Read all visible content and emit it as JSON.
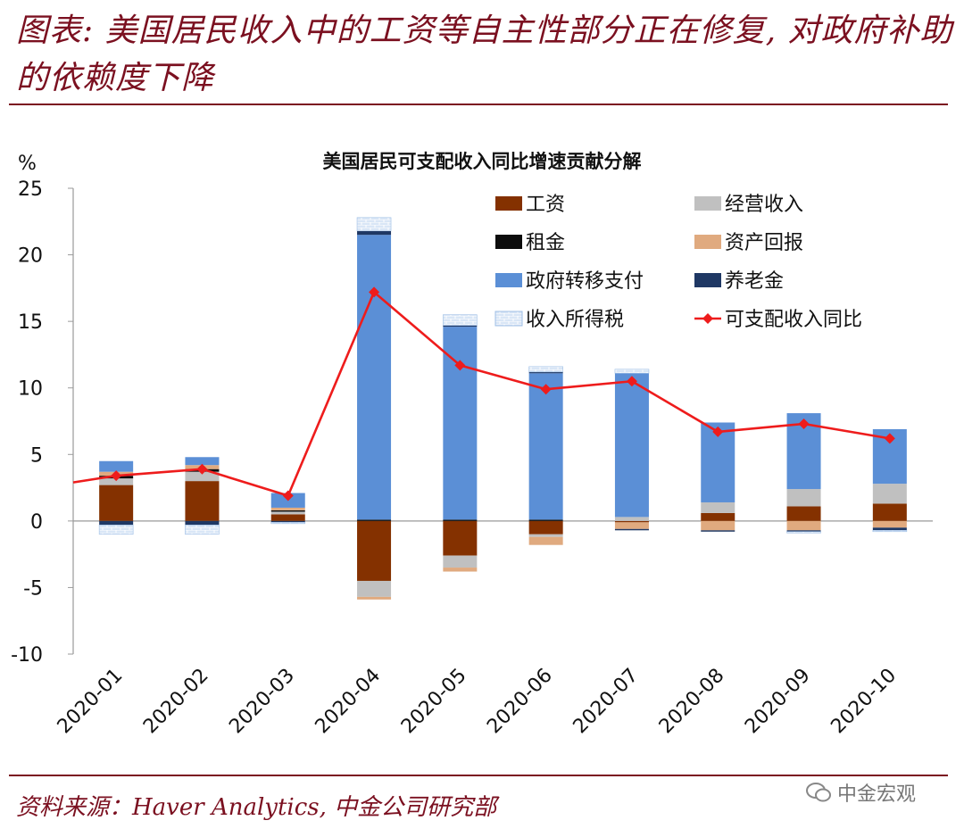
{
  "header": {
    "title": "图表: 美国居民收入中的工资等自主性部分正在修复, 对政府补助的依赖度下降"
  },
  "footer": {
    "source": "资料来源：Haver Analytics, 中金公司研究部",
    "watermark": "中金宏观"
  },
  "colors": {
    "title": "#7b1020",
    "wage": "#843100",
    "business": "#c0c0c0",
    "rent": "#0d0d0d",
    "asset": "#e0aa7f",
    "gov": "#5b8fd6",
    "pension": "#1f3864",
    "tax": "#d9e6f6",
    "line": "#ee1c1c"
  },
  "chart_data": {
    "type": "bar",
    "stacked": true,
    "title": "美国居民可支配收入同比增速贡献分解",
    "ylabel": "%",
    "ylim": [
      -10,
      25
    ],
    "yticks": [
      "25",
      "20",
      "15",
      "10",
      "5",
      "0",
      "-5",
      "-10"
    ],
    "categories": [
      "2020-01",
      "2020-02",
      "2020-03",
      "2020-04",
      "2020-05",
      "2020-06",
      "2020-07",
      "2020-08",
      "2020-09",
      "2020-10"
    ],
    "series": [
      {
        "name": "工资",
        "key": "wage",
        "values": [
          2.7,
          3.0,
          0.5,
          -4.5,
          -2.6,
          -1.0,
          -0.1,
          0.6,
          1.1,
          1.3
        ]
      },
      {
        "name": "经营收入",
        "key": "business",
        "values": [
          0.5,
          0.7,
          0.2,
          -1.2,
          -0.9,
          -0.2,
          0.3,
          0.8,
          1.3,
          1.5
        ]
      },
      {
        "name": "租金",
        "key": "rent",
        "values": [
          0.2,
          0.2,
          0.1,
          0.1,
          0.1,
          0.1,
          0.0,
          0.0,
          0.0,
          0.0
        ]
      },
      {
        "name": "资产回报",
        "key": "asset",
        "values": [
          0.3,
          0.3,
          0.2,
          -0.2,
          -0.3,
          -0.6,
          -0.5,
          -0.7,
          -0.7,
          -0.5
        ]
      },
      {
        "name": "政府转移支付",
        "key": "gov",
        "values": [
          0.8,
          0.6,
          1.1,
          21.4,
          14.5,
          11.0,
          10.8,
          6.0,
          5.7,
          4.1
        ]
      },
      {
        "name": "养老金",
        "key": "pension",
        "values": [
          -0.3,
          -0.3,
          -0.1,
          0.3,
          0.1,
          0.1,
          -0.1,
          -0.1,
          -0.1,
          -0.2
        ]
      },
      {
        "name": "收入所得税",
        "key": "tax",
        "values": [
          -0.7,
          -0.7,
          -0.1,
          1.0,
          0.8,
          0.4,
          0.3,
          0.0,
          -0.1,
          -0.1
        ]
      }
    ],
    "line": {
      "name": "可支配收入同比",
      "key": "line",
      "values": [
        3.4,
        3.9,
        1.9,
        17.2,
        11.7,
        9.9,
        10.5,
        6.7,
        7.3,
        6.2
      ]
    },
    "line_start_value": 2.9,
    "legend": [
      {
        "label": "工资",
        "key": "wage",
        "kind": "box"
      },
      {
        "label": "经营收入",
        "key": "business",
        "kind": "box"
      },
      {
        "label": "租金",
        "key": "rent",
        "kind": "box"
      },
      {
        "label": "资产回报",
        "key": "asset",
        "kind": "box"
      },
      {
        "label": "政府转移支付",
        "key": "gov",
        "kind": "box"
      },
      {
        "label": "养老金",
        "key": "pension",
        "kind": "box"
      },
      {
        "label": "收入所得税",
        "key": "tax",
        "kind": "hatch"
      },
      {
        "label": "可支配收入同比",
        "key": "line",
        "kind": "line"
      }
    ]
  }
}
